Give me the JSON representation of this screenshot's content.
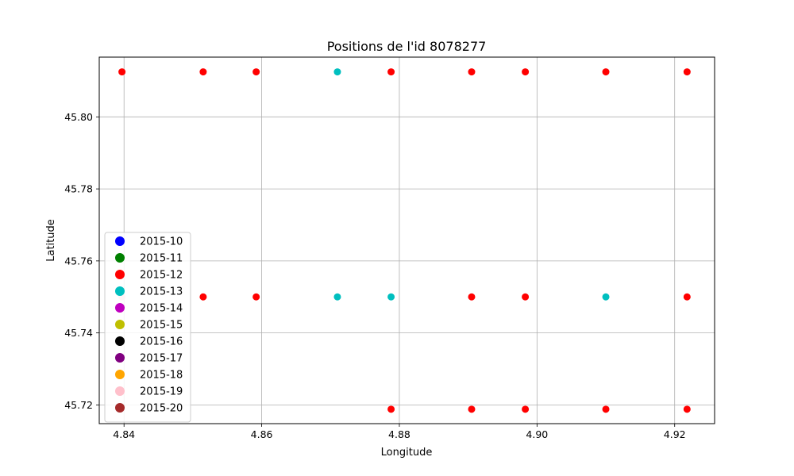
{
  "chart_data": {
    "type": "scatter",
    "title": "Positions de l'id 8078277",
    "xlabel": "Longitude",
    "ylabel": "Latitude",
    "xlim": [
      4.8364,
      4.9258
    ],
    "ylim": [
      45.7148,
      45.8166
    ],
    "xticks": [
      "4.84",
      "4.86",
      "4.88",
      "4.90",
      "4.92"
    ],
    "yticks": [
      "45.72",
      "45.74",
      "45.76",
      "45.78",
      "45.80"
    ],
    "grid": true,
    "legend_position": "lower-left",
    "series": [
      {
        "name": "2015-10",
        "color": "#0000ff",
        "points": []
      },
      {
        "name": "2015-11",
        "color": "#008000",
        "points": []
      },
      {
        "name": "2015-12",
        "color": "#ff0000",
        "points": [
          [
            4.8397,
            45.8125
          ],
          [
            4.8515,
            45.8125
          ],
          [
            4.8592,
            45.8125
          ],
          [
            4.8788,
            45.8125
          ],
          [
            4.8905,
            45.8125
          ],
          [
            4.8983,
            45.8125
          ],
          [
            4.91,
            45.8125
          ],
          [
            4.9218,
            45.8125
          ],
          [
            4.8515,
            45.75
          ],
          [
            4.8592,
            45.75
          ],
          [
            4.8905,
            45.75
          ],
          [
            4.8983,
            45.75
          ],
          [
            4.9218,
            45.75
          ],
          [
            4.8788,
            45.7188
          ],
          [
            4.8905,
            45.7188
          ],
          [
            4.8983,
            45.7188
          ],
          [
            4.91,
            45.7188
          ],
          [
            4.9218,
            45.7188
          ]
        ]
      },
      {
        "name": "2015-13",
        "color": "#00bfbf",
        "points": [
          [
            4.871,
            45.8125
          ],
          [
            4.871,
            45.75
          ],
          [
            4.8788,
            45.75
          ],
          [
            4.91,
            45.75
          ]
        ]
      },
      {
        "name": "2015-14",
        "color": "#bf00bf",
        "points": []
      },
      {
        "name": "2015-15",
        "color": "#bfbf00",
        "points": []
      },
      {
        "name": "2015-16",
        "color": "#000000",
        "points": []
      },
      {
        "name": "2015-17",
        "color": "#800080",
        "points": []
      },
      {
        "name": "2015-18",
        "color": "#ffa500",
        "points": []
      },
      {
        "name": "2015-19",
        "color": "#ffc0cb",
        "points": [
          [
            4.8397,
            45.75
          ]
        ]
      },
      {
        "name": "2015-20",
        "color": "#a52a2a",
        "points": []
      }
    ]
  }
}
